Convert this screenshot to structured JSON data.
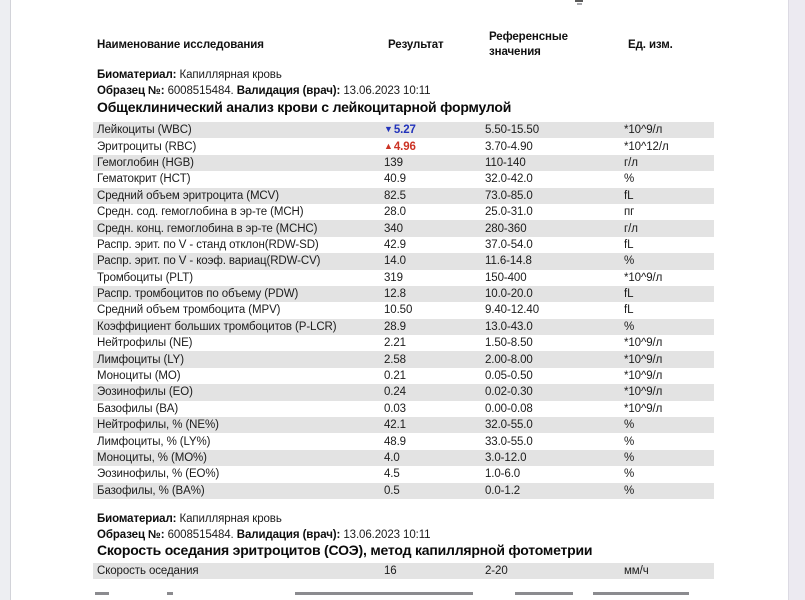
{
  "page": {
    "columns": {
      "name": "Наименование исследования",
      "result": "Результат",
      "reference_line1": "Референсные",
      "reference_line2": "значения",
      "units": "Ед. изм."
    },
    "meta": {
      "biomaterial_label": "Биоматериал:",
      "biomaterial_value": "Капиллярная кровь",
      "sample_label": "Образец №:",
      "sample_value": "6008515484.",
      "validation_label": "Валидация (врач):",
      "validation_value": "13.06.2023 10:11"
    },
    "flags": {
      "low_marker": "▼",
      "high_marker": "▲",
      "low_color": "#2233bb",
      "high_color": "#cc3325"
    },
    "sections": [
      {
        "title": "Общеклинический анализ крови с лейкоцитарной формулой",
        "rows": [
          {
            "name": "Лейкоциты (WBC)",
            "result": "5.27",
            "flag": "low",
            "reference": "5.50-15.50",
            "units": "*10^9/л"
          },
          {
            "name": "Эритроциты (RBC)",
            "result": "4.96",
            "flag": "high",
            "reference": "3.70-4.90",
            "units": "*10^12/л"
          },
          {
            "name": "Гемоглобин (HGB)",
            "result": "139",
            "reference": "110-140",
            "units": "г/л"
          },
          {
            "name": "Гематокрит (HCT)",
            "result": "40.9",
            "reference": "32.0-42.0",
            "units": "%"
          },
          {
            "name": "Средний объем эритроцита (MCV)",
            "result": "82.5",
            "reference": "73.0-85.0",
            "units": "fL"
          },
          {
            "name": "Средн. сод. гемоглобина в эр-те (MCH)",
            "result": "28.0",
            "reference": "25.0-31.0",
            "units": "пг"
          },
          {
            "name": "Средн. конц. гемоглобина в эр-те (MCHC)",
            "result": "340",
            "reference": "280-360",
            "units": "г/л"
          },
          {
            "name": "Распр. эрит. по V - станд отклон(RDW-SD)",
            "result": "42.9",
            "reference": "37.0-54.0",
            "units": "fL"
          },
          {
            "name": "Распр. эрит. по V - коэф. вариац(RDW-CV)",
            "result": "14.0",
            "reference": "11.6-14.8",
            "units": "%"
          },
          {
            "name": "Тромбоциты (PLT)",
            "result": "319",
            "reference": "150-400",
            "units": "*10^9/л"
          },
          {
            "name": "Распр. тромбоцитов по объему (PDW)",
            "result": "12.8",
            "reference": "10.0-20.0",
            "units": "fL"
          },
          {
            "name": "Средний объем тромбоцита (MPV)",
            "result": "10.50",
            "reference": "9.40-12.40",
            "units": "fL"
          },
          {
            "name": "Коэффициент больших тромбоцитов (P-LCR)",
            "result": "28.9",
            "reference": "13.0-43.0",
            "units": "%"
          },
          {
            "name": "Нейтрофилы (NE)",
            "result": "2.21",
            "reference": "1.50-8.50",
            "units": "*10^9/л"
          },
          {
            "name": "Лимфоциты (LY)",
            "result": "2.58",
            "reference": "2.00-8.00",
            "units": "*10^9/л"
          },
          {
            "name": "Моноциты (MO)",
            "result": "0.21",
            "reference": "0.05-0.50",
            "units": "*10^9/л"
          },
          {
            "name": "Эозинофилы (EO)",
            "result": "0.24",
            "reference": "0.02-0.30",
            "units": "*10^9/л"
          },
          {
            "name": "Базофилы (BA)",
            "result": "0.03",
            "reference": "0.00-0.08",
            "units": "*10^9/л"
          },
          {
            "name": "Нейтрофилы, % (NE%)",
            "result": "42.1",
            "reference": "32.0-55.0",
            "units": "%"
          },
          {
            "name": "Лимфоциты, % (LY%)",
            "result": "48.9",
            "reference": "33.0-55.0",
            "units": "%"
          },
          {
            "name": "Моноциты, % (MO%)",
            "result": "4.0",
            "reference": "3.0-12.0",
            "units": "%"
          },
          {
            "name": "Эозинофилы, % (EO%)",
            "result": "4.5",
            "reference": "1.0-6.0",
            "units": "%"
          },
          {
            "name": "Базофилы, % (BA%)",
            "result": "0.5",
            "reference": "0.0-1.2",
            "units": "%"
          }
        ]
      },
      {
        "title": "Скорость оседания эритроцитов (СОЭ), метод капиллярной фотометрии",
        "rows": [
          {
            "name": "Скорость оседания",
            "result": "16",
            "reference": "2-20",
            "units": "мм/ч"
          }
        ]
      }
    ]
  }
}
